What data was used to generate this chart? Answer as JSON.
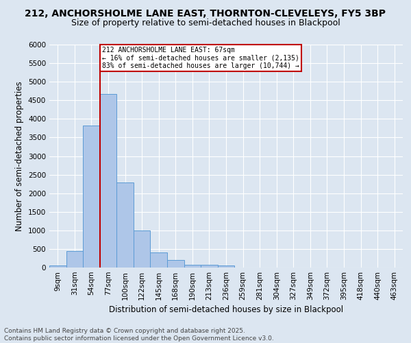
{
  "title1": "212, ANCHORSHOLME LANE EAST, THORNTON-CLEVELEYS, FY5 3BP",
  "title2": "Size of property relative to semi-detached houses in Blackpool",
  "xlabel": "Distribution of semi-detached houses by size in Blackpool",
  "ylabel": "Number of semi-detached properties",
  "footnote": "Contains HM Land Registry data © Crown copyright and database right 2025.\nContains public sector information licensed under the Open Government Licence v3.0.",
  "bin_labels": [
    "9sqm",
    "31sqm",
    "54sqm",
    "77sqm",
    "100sqm",
    "122sqm",
    "145sqm",
    "168sqm",
    "190sqm",
    "213sqm",
    "236sqm",
    "259sqm",
    "281sqm",
    "304sqm",
    "327sqm",
    "349sqm",
    "372sqm",
    "395sqm",
    "418sqm",
    "440sqm",
    "463sqm"
  ],
  "bar_values": [
    50,
    440,
    3830,
    4680,
    2290,
    990,
    400,
    200,
    80,
    70,
    50,
    0,
    0,
    0,
    0,
    0,
    0,
    0,
    0,
    0,
    0
  ],
  "bar_color": "#aec6e8",
  "bar_edge_color": "#5b9bd5",
  "ylim": [
    0,
    6000
  ],
  "yticks": [
    0,
    500,
    1000,
    1500,
    2000,
    2500,
    3000,
    3500,
    4000,
    4500,
    5000,
    5500,
    6000
  ],
  "property_size": 67,
  "property_bin_index": 2,
  "property_label": "212 ANCHORSHOLME LANE EAST: 67sqm",
  "smaller_pct": "16%",
  "smaller_count": 2135,
  "larger_pct": "83%",
  "larger_count": 10744,
  "vline_color": "#c00000",
  "annotation_box_color": "#c00000",
  "bg_color": "#dce6f1",
  "plot_bg_color": "#dce6f1",
  "grid_color": "#ffffff",
  "title1_fontsize": 10,
  "title2_fontsize": 9,
  "xlabel_fontsize": 8.5,
  "ylabel_fontsize": 8.5,
  "footnote_fontsize": 6.5,
  "tick_fontsize": 7.5,
  "annot_fontsize": 7.0
}
